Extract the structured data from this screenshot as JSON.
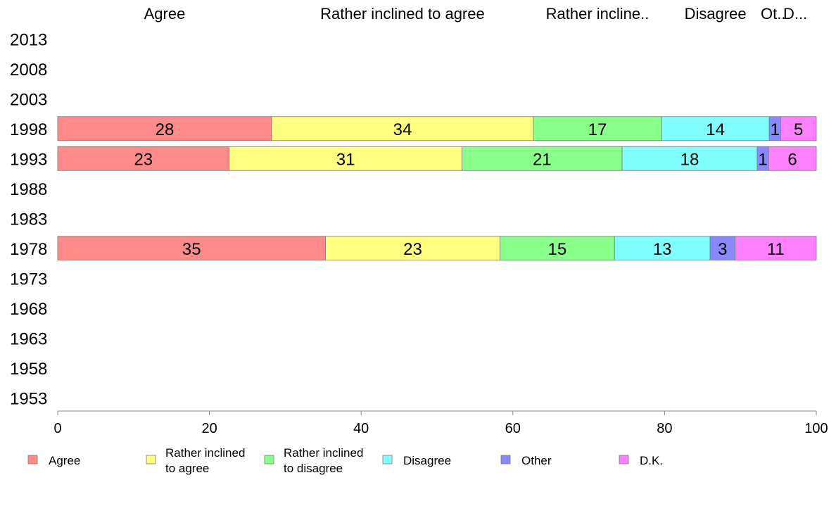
{
  "chart_data": {
    "type": "bar",
    "orientation": "horizontal",
    "stacked": true,
    "categories": [
      "2013",
      "2008",
      "2003",
      "1998",
      "1993",
      "1988",
      "1983",
      "1978",
      "1973",
      "1968",
      "1963",
      "1958",
      "1953"
    ],
    "series": [
      {
        "name": "Agree",
        "legend_label": [
          "Agree"
        ],
        "top_label": "Agree",
        "color": "#ff8a8a",
        "values": [
          null,
          null,
          null,
          28,
          23,
          null,
          null,
          35,
          null,
          null,
          null,
          null,
          null
        ],
        "bar_values": [
          null,
          null,
          null,
          28.2,
          22.6,
          null,
          null,
          35.3,
          null,
          null,
          null,
          null,
          null
        ]
      },
      {
        "name": "Rather inclined to agree",
        "legend_label": [
          "Rather inclined",
          "to agree"
        ],
        "top_label": "Rather inclined to agree",
        "color": "#ffff80",
        "values": [
          null,
          null,
          null,
          34,
          31,
          null,
          null,
          23,
          null,
          null,
          null,
          null,
          null
        ],
        "bar_values": [
          null,
          null,
          null,
          34.5,
          30.7,
          null,
          null,
          23.0,
          null,
          null,
          null,
          null,
          null
        ]
      },
      {
        "name": "Rather inclined to disagree",
        "legend_label": [
          "Rather inclined",
          "to disagree"
        ],
        "top_label": "Rather incline..",
        "color": "#88ff88",
        "values": [
          null,
          null,
          null,
          17,
          21,
          null,
          null,
          15,
          null,
          null,
          null,
          null,
          null
        ],
        "bar_values": [
          null,
          null,
          null,
          16.9,
          21.1,
          null,
          null,
          15.1,
          null,
          null,
          null,
          null,
          null
        ]
      },
      {
        "name": "Disagree",
        "legend_label": [
          "Disagree"
        ],
        "top_label": "Disagree",
        "color": "#80ffff",
        "values": [
          null,
          null,
          null,
          14,
          18,
          null,
          null,
          13,
          null,
          null,
          null,
          null,
          null
        ],
        "bar_values": [
          null,
          null,
          null,
          14.2,
          17.8,
          null,
          null,
          12.6,
          null,
          null,
          null,
          null,
          null
        ]
      },
      {
        "name": "Other",
        "legend_label": [
          "Other"
        ],
        "top_label": "Ot..",
        "color": "#8888ff",
        "values": [
          null,
          null,
          null,
          1,
          1,
          null,
          null,
          3,
          null,
          null,
          null,
          null,
          null
        ],
        "bar_values": [
          null,
          null,
          null,
          1.5,
          1.5,
          null,
          null,
          3.3,
          null,
          null,
          null,
          null,
          null
        ]
      },
      {
        "name": "D.K.",
        "legend_label": [
          "D.K."
        ],
        "top_label": "D...",
        "color": "#ff80ff",
        "values": [
          null,
          null,
          null,
          5,
          6,
          null,
          null,
          11,
          null,
          null,
          null,
          null,
          null
        ],
        "bar_values": [
          null,
          null,
          null,
          4.7,
          6.3,
          null,
          null,
          10.7,
          null,
          null,
          null,
          null,
          null
        ]
      }
    ],
    "top_label_row": "1998",
    "xlim": [
      0,
      100
    ],
    "xticks": [
      0,
      20,
      40,
      60,
      80,
      100
    ],
    "grid": false,
    "legend_position": "bottom",
    "title": "",
    "xlabel": "",
    "ylabel": ""
  }
}
